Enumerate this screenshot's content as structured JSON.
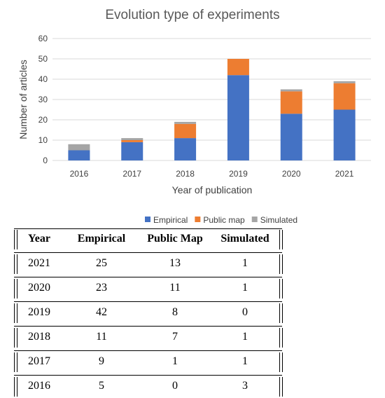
{
  "chart_data": {
    "type": "bar",
    "stacked": true,
    "title": "Evolution type of experiments",
    "xlabel": "Year of publication",
    "ylabel": "Number of articles",
    "ylim": [
      0,
      60
    ],
    "yticks": [
      0,
      10,
      20,
      30,
      40,
      50,
      60
    ],
    "categories": [
      "2016",
      "2017",
      "2018",
      "2019",
      "2020",
      "2021"
    ],
    "series": [
      {
        "name": "Empirical",
        "color": "#4472c4",
        "values": [
          5,
          9,
          11,
          42,
          23,
          25
        ]
      },
      {
        "name": "Public map",
        "color": "#ed7d31",
        "values": [
          0,
          1,
          7,
          8,
          11,
          13
        ]
      },
      {
        "name": "Simulated",
        "color": "#a5a5a5",
        "values": [
          3,
          1,
          1,
          0,
          1,
          1
        ]
      }
    ],
    "grid": true,
    "legend_position": "bottom"
  },
  "table": {
    "headers": [
      "Year",
      "Empirical",
      "Public Map",
      "Simulated"
    ],
    "rows": [
      [
        "2021",
        "25",
        "13",
        "1"
      ],
      [
        "2020",
        "23",
        "11",
        "1"
      ],
      [
        "2019",
        "42",
        "8",
        "0"
      ],
      [
        "2018",
        "11",
        "7",
        "1"
      ],
      [
        "2017",
        "9",
        "1",
        "1"
      ],
      [
        "2016",
        "5",
        "0",
        "3"
      ]
    ]
  }
}
